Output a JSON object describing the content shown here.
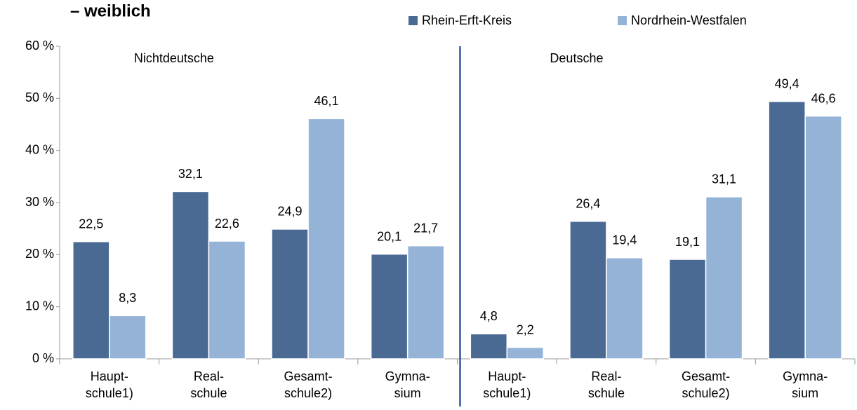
{
  "chart_data": {
    "type": "bar",
    "title": "– weiblich",
    "categories": [
      [
        "Haupt-",
        "schule1)"
      ],
      [
        "Real-",
        "schule"
      ],
      [
        "Gesamt-",
        "schule2)"
      ],
      [
        "Gymna-",
        "sium"
      ],
      [
        "Haupt-",
        "schule1)"
      ],
      [
        "Real-",
        "schule"
      ],
      [
        "Gesamt-",
        "schule2)"
      ],
      [
        "Gymna-",
        "sium"
      ]
    ],
    "annotations": [
      "Nichtdeutsche",
      "Deutsche"
    ],
    "series": [
      {
        "name": "Rhein-Erft-Kreis",
        "color": "#4a6a94",
        "values": [
          22.5,
          32.1,
          24.9,
          20.1,
          4.8,
          26.4,
          19.1,
          49.4
        ],
        "value_labels": [
          "22,5",
          "32,1",
          "24,9",
          "20,1",
          "4,8",
          "26,4",
          "19,1",
          "49,4"
        ]
      },
      {
        "name": "Nordrhein-Westfalen",
        "color": "#95b3d7",
        "values": [
          8.3,
          22.6,
          46.1,
          21.7,
          2.2,
          19.4,
          31.1,
          46.6
        ],
        "value_labels": [
          "8,3",
          "22,6",
          "46,1",
          "21,7",
          "2,2",
          "19,4",
          "31,1",
          "46,6"
        ]
      }
    ],
    "ylim": [
      0,
      60
    ],
    "yticks": [
      {
        "value": 0,
        "label": "0 %"
      },
      {
        "value": 10,
        "label": "10 %"
      },
      {
        "value": 20,
        "label": "20 %"
      },
      {
        "value": 30,
        "label": "30 %"
      },
      {
        "value": 40,
        "label": "40 %"
      },
      {
        "value": 50,
        "label": "50 %"
      },
      {
        "value": 60,
        "label": "60 %"
      }
    ],
    "grid": false
  }
}
